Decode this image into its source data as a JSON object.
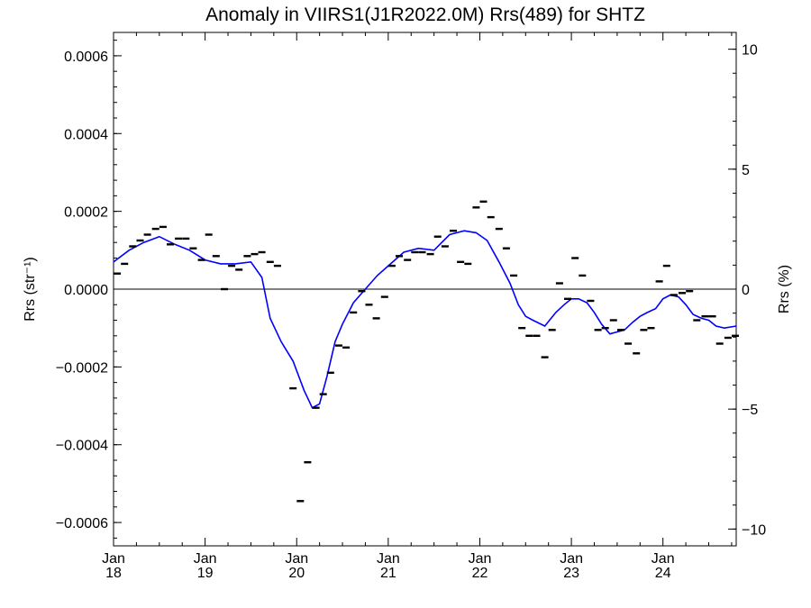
{
  "chart_data": {
    "type": "scatter",
    "title": "Anomaly in VIIRS1(J1R2022.0M) Rrs(489) for SHTZ",
    "ylabel_left": "Rrs (str⁻¹)",
    "ylabel_right": "Rrs (%)",
    "xlabel": "",
    "xlim": [
      2018.0,
      2024.8
    ],
    "ylim_left": [
      -0.00066,
      0.00066
    ],
    "ylim_right": [
      -10.7,
      10.7
    ],
    "x_ticks": [
      {
        "value": 2018,
        "month": "Jan",
        "year": "18"
      },
      {
        "value": 2019,
        "month": "Jan",
        "year": "19"
      },
      {
        "value": 2020,
        "month": "Jan",
        "year": "20"
      },
      {
        "value": 2021,
        "month": "Jan",
        "year": "21"
      },
      {
        "value": 2022,
        "month": "Jan",
        "year": "22"
      },
      {
        "value": 2023,
        "month": "Jan",
        "year": "23"
      },
      {
        "value": 2024,
        "month": "Jan",
        "year": "24"
      }
    ],
    "y_ticks_left": [
      {
        "value": 0.0006,
        "label": "0.0006"
      },
      {
        "value": 0.0004,
        "label": "0.0004"
      },
      {
        "value": 0.0002,
        "label": "0.0002"
      },
      {
        "value": 0.0,
        "label": "0.0000"
      },
      {
        "value": -0.0002,
        "label": "−0.0002"
      },
      {
        "value": -0.0004,
        "label": "−0.0004"
      },
      {
        "value": -0.0006,
        "label": "−0.0006"
      }
    ],
    "y_ticks_right": [
      {
        "value": 10,
        "label": "10"
      },
      {
        "value": 5,
        "label": "5"
      },
      {
        "value": 0,
        "label": "0"
      },
      {
        "value": -5,
        "label": "−5"
      },
      {
        "value": -10,
        "label": "−10"
      }
    ],
    "zero_line": true,
    "grid": false,
    "series": [
      {
        "kind": "monthly-anomaly",
        "color": "#000000",
        "x": [
          2018.04,
          2018.12,
          2018.21,
          2018.29,
          2018.37,
          2018.46,
          2018.54,
          2018.62,
          2018.71,
          2018.79,
          2018.87,
          2018.96,
          2019.04,
          2019.12,
          2019.21,
          2019.29,
          2019.37,
          2019.46,
          2019.54,
          2019.62,
          2019.71,
          2019.79,
          2019.96,
          2020.04,
          2020.12,
          2020.21,
          2020.29,
          2020.37,
          2020.46,
          2020.54,
          2020.62,
          2020.71,
          2020.79,
          2020.87,
          2020.96,
          2021.04,
          2021.12,
          2021.21,
          2021.29,
          2021.37,
          2021.46,
          2021.54,
          2021.62,
          2021.71,
          2021.79,
          2021.87,
          2021.96,
          2022.04,
          2022.12,
          2022.21,
          2022.29,
          2022.37,
          2022.46,
          2022.54,
          2022.62,
          2022.71,
          2022.79,
          2022.87,
          2022.96,
          2023.04,
          2023.12,
          2023.21,
          2023.29,
          2023.37,
          2023.46,
          2023.54,
          2023.62,
          2023.71,
          2023.79,
          2023.87,
          2023.96,
          2024.04,
          2024.12,
          2024.21,
          2024.29,
          2024.37,
          2024.46,
          2024.54,
          2024.62,
          2024.71,
          2024.79
        ],
        "values": [
          4e-05,
          6.5e-05,
          0.00011,
          0.000125,
          0.00014,
          0.000155,
          0.00016,
          0.000115,
          0.00013,
          0.00013,
          0.000105,
          7.5e-05,
          0.00014,
          8.5e-05,
          0.0,
          6e-05,
          5e-05,
          8.5e-05,
          9e-05,
          9.5e-05,
          7e-05,
          6e-05,
          -0.000255,
          -0.000545,
          -0.000445,
          -0.000305,
          -0.00027,
          -0.000215,
          -0.000145,
          -0.00015,
          -6e-05,
          -5e-06,
          -4e-05,
          -7.5e-05,
          -2e-05,
          6e-05,
          8.5e-05,
          7.5e-05,
          9.5e-05,
          9.5e-05,
          9e-05,
          0.000135,
          0.00011,
          0.00015,
          7e-05,
          6.5e-05,
          0.00021,
          0.000225,
          0.000185,
          0.000155,
          0.000105,
          3.5e-05,
          -0.0001,
          -0.00012,
          -0.00012,
          -0.000175,
          -0.000105,
          1.5e-05,
          -2.5e-05,
          8e-05,
          3.5e-05,
          -3e-05,
          -0.000105,
          -0.0001,
          -8e-05,
          -0.000105,
          -0.00014,
          -0.000165,
          -0.000105,
          -0.0001,
          2e-05,
          6e-05,
          -1.5e-05,
          -1e-05,
          -5e-06,
          -8e-05,
          -7e-05,
          -7e-05,
          -0.00014,
          -0.000125,
          -0.00012
        ]
      },
      {
        "kind": "smoothed-trend",
        "color": "#0000ff",
        "x": [
          2018.0,
          2018.17,
          2018.33,
          2018.5,
          2018.67,
          2018.83,
          2019.0,
          2019.17,
          2019.33,
          2019.5,
          2019.62,
          2019.71,
          2019.83,
          2019.96,
          2020.08,
          2020.17,
          2020.25,
          2020.33,
          2020.42,
          2020.5,
          2020.62,
          2020.75,
          2020.88,
          2021.0,
          2021.17,
          2021.33,
          2021.5,
          2021.67,
          2021.83,
          2021.96,
          2022.08,
          2022.21,
          2022.33,
          2022.42,
          2022.5,
          2022.58,
          2022.71,
          2022.83,
          2022.92,
          2023.0,
          2023.08,
          2023.17,
          2023.25,
          2023.33,
          2023.42,
          2023.5,
          2023.58,
          2023.67,
          2023.75,
          2023.83,
          2023.92,
          2024.0,
          2024.08,
          2024.17,
          2024.25,
          2024.33,
          2024.42,
          2024.5,
          2024.58,
          2024.67,
          2024.8
        ],
        "values": [
          7e-05,
          0.0001,
          0.00012,
          0.000135,
          0.000115,
          0.0001,
          7.5e-05,
          6.5e-05,
          6.5e-05,
          7e-05,
          3e-05,
          -7.5e-05,
          -0.000135,
          -0.000185,
          -0.00026,
          -0.000305,
          -0.000295,
          -0.000225,
          -0.000135,
          -9e-05,
          -3.5e-05,
          0.0,
          3.5e-05,
          6e-05,
          9.5e-05,
          0.000105,
          0.0001,
          0.00014,
          0.00015,
          0.000145,
          0.000125,
          7e-05,
          1.5e-05,
          -4e-05,
          -7e-05,
          -8e-05,
          -9.5e-05,
          -6e-05,
          -4e-05,
          -2.5e-05,
          -2.5e-05,
          -3.5e-05,
          -6e-05,
          -9e-05,
          -0.000115,
          -0.00011,
          -0.000105,
          -8.5e-05,
          -7e-05,
          -6e-05,
          -5e-05,
          -2.5e-05,
          -1.5e-05,
          -2e-05,
          -4e-05,
          -6.5e-05,
          -7.5e-05,
          -8e-05,
          -9.5e-05,
          -0.0001,
          -9.5e-05
        ]
      }
    ]
  }
}
